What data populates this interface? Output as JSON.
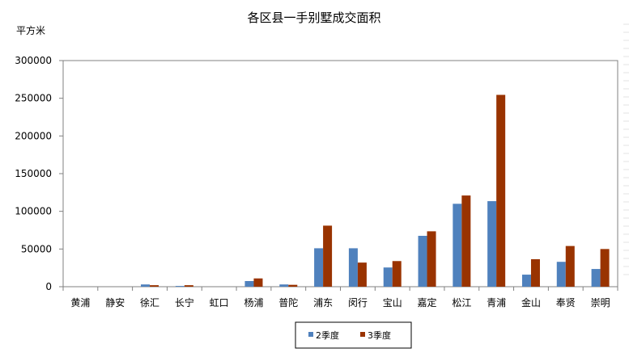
{
  "chart_data": {
    "type": "bar",
    "title": "各区县一手别墅成交面积",
    "ylabel": "平方米",
    "xlabel": "",
    "ylim": [
      0,
      300000
    ],
    "yticks": [
      "0",
      "50000",
      "100000",
      "150000",
      "200000",
      "250000",
      "300000"
    ],
    "ytick_values": [
      0,
      50000,
      100000,
      150000,
      200000,
      250000,
      300000
    ],
    "categories": [
      "黄浦",
      "静安",
      "徐汇",
      "长宁",
      "虹口",
      "杨浦",
      "普陀",
      "浦东",
      "闵行",
      "宝山",
      "嘉定",
      "松江",
      "青浦",
      "金山",
      "奉贤",
      "崇明"
    ],
    "series": [
      {
        "name": "2季度",
        "color": "#4F81BD",
        "values": [
          0,
          0,
          3000,
          1000,
          0,
          7500,
          3000,
          51000,
          51000,
          25500,
          67500,
          110000,
          113500,
          16000,
          33000,
          23500
        ]
      },
      {
        "name": "3季度",
        "color": "#993300",
        "values": [
          0,
          0,
          2000,
          2000,
          0,
          11000,
          2500,
          81000,
          32000,
          34000,
          73500,
          121000,
          254500,
          36500,
          54000,
          50000
        ]
      }
    ],
    "grid": false,
    "legend_position": "bottom"
  }
}
